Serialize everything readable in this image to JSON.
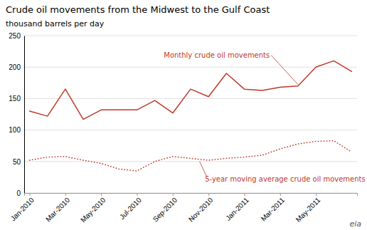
{
  "chart_data": {
    "type": "line",
    "title": "Crude oil movements from the Midwest to the Gulf Coast",
    "ylabel": "thousand barrels per day",
    "categories": [
      "Jan-2010",
      null,
      "Mar-2010",
      null,
      "May-2010",
      null,
      "Jul-2010",
      null,
      "Sep-2010",
      null,
      "Nov-2010",
      null,
      "Jan-2011",
      null,
      "Mar-2011",
      null,
      "May-2011",
      null,
      null
    ],
    "series": [
      {
        "color": "#c0392b",
        "line_style": "solid",
        "values": [
          130,
          122,
          165,
          117,
          132,
          132,
          132,
          147,
          127,
          165,
          153,
          190,
          165,
          163,
          168,
          170,
          200,
          210,
          193
        ]
      },
      {
        "color": "#c0392b",
        "line_style": "dotted",
        "values": [
          52,
          57,
          58,
          52,
          47,
          38,
          35,
          50,
          58,
          55,
          52,
          55,
          57,
          60,
          70,
          78,
          82,
          83,
          65
        ]
      }
    ],
    "ylim": [
      0,
      250
    ],
    "yticks": [
      0,
      50,
      100,
      150,
      200,
      250
    ],
    "grid": true,
    "annotations": [
      "Monthly crude oil movements",
      "5-year moving average crude oil movements",
      "eia"
    ]
  }
}
